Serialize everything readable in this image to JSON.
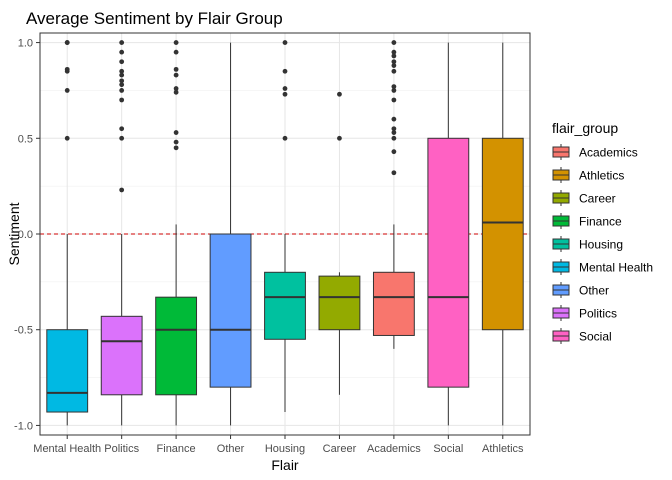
{
  "chart_data": {
    "type": "boxplot",
    "title": "Average Sentiment by Flair Group",
    "xlabel": "Flair",
    "ylabel": "Sentiment",
    "ylim": [
      -1.05,
      1.05
    ],
    "yticks": [
      -1.0,
      -0.5,
      0.0,
      0.5,
      1.0
    ],
    "ytick_labels": [
      "-1.0",
      "-0.5",
      "0.0",
      "0.5",
      "1.0"
    ],
    "grid": true,
    "reference_line": {
      "y": 0.0,
      "style": "dashed",
      "color": "#cc0000"
    },
    "legend": {
      "title": "flair_group",
      "position": "right",
      "entries": [
        "Academics",
        "Athletics",
        "Career",
        "Finance",
        "Housing",
        "Mental Health",
        "Other",
        "Politics",
        "Social"
      ]
    },
    "colors": {
      "Academics": "#F8766D",
      "Athletics": "#D39200",
      "Career": "#93AA00",
      "Finance": "#00BA38",
      "Housing": "#00C19F",
      "Mental Health": "#00B9E3",
      "Other": "#619CFF",
      "Politics": "#DB72FB",
      "Social": "#FF61C3"
    },
    "categories": [
      "Mental Health",
      "Politics",
      "Finance",
      "Other",
      "Housing",
      "Career",
      "Academics",
      "Social",
      "Athletics"
    ],
    "boxes": [
      {
        "category": "Mental Health",
        "whisker_low": -1.0,
        "q1": -0.93,
        "median": -0.83,
        "q3": -0.5,
        "whisker_high": 0.0,
        "outliers": [
          0.5,
          0.75,
          0.85,
          0.86,
          1.0,
          1.0
        ]
      },
      {
        "category": "Politics",
        "whisker_low": -1.0,
        "q1": -0.84,
        "median": -0.56,
        "q3": -0.43,
        "whisker_high": 0.0,
        "outliers": [
          0.23,
          0.5,
          0.55,
          0.7,
          0.75,
          0.78,
          0.8,
          0.83,
          0.85,
          0.9,
          0.95,
          1.0
        ]
      },
      {
        "category": "Finance",
        "whisker_low": -1.0,
        "q1": -0.84,
        "median": -0.5,
        "q3": -0.33,
        "whisker_high": 0.05,
        "outliers": [
          0.45,
          0.48,
          0.53,
          0.74,
          0.76,
          0.83,
          0.86,
          0.95,
          1.0
        ]
      },
      {
        "category": "Other",
        "whisker_low": -1.0,
        "q1": -0.8,
        "median": -0.5,
        "q3": 0.0,
        "whisker_high": 1.0,
        "outliers": []
      },
      {
        "category": "Housing",
        "whisker_low": -0.93,
        "q1": -0.55,
        "median": -0.33,
        "q3": -0.2,
        "whisker_high": 0.0,
        "outliers": [
          0.5,
          0.73,
          0.76,
          0.85,
          1.0
        ]
      },
      {
        "category": "Career",
        "whisker_low": -0.84,
        "q1": -0.5,
        "median": -0.33,
        "q3": -0.22,
        "whisker_high": -0.2,
        "outliers": [
          0.5,
          0.73
        ]
      },
      {
        "category": "Academics",
        "whisker_low": -0.6,
        "q1": -0.53,
        "median": -0.33,
        "q3": -0.2,
        "whisker_high": 0.05,
        "outliers": [
          0.32,
          0.43,
          0.5,
          0.53,
          0.55,
          0.6,
          0.7,
          0.75,
          0.77,
          0.85,
          0.88,
          0.9,
          0.93,
          0.95,
          1.0
        ]
      },
      {
        "category": "Social",
        "whisker_low": -1.0,
        "q1": -0.8,
        "median": -0.33,
        "q3": 0.5,
        "whisker_high": 1.0,
        "outliers": []
      },
      {
        "category": "Athletics",
        "whisker_low": -1.0,
        "q1": -0.5,
        "median": 0.06,
        "q3": 0.5,
        "whisker_high": 1.0,
        "outliers": []
      }
    ]
  }
}
